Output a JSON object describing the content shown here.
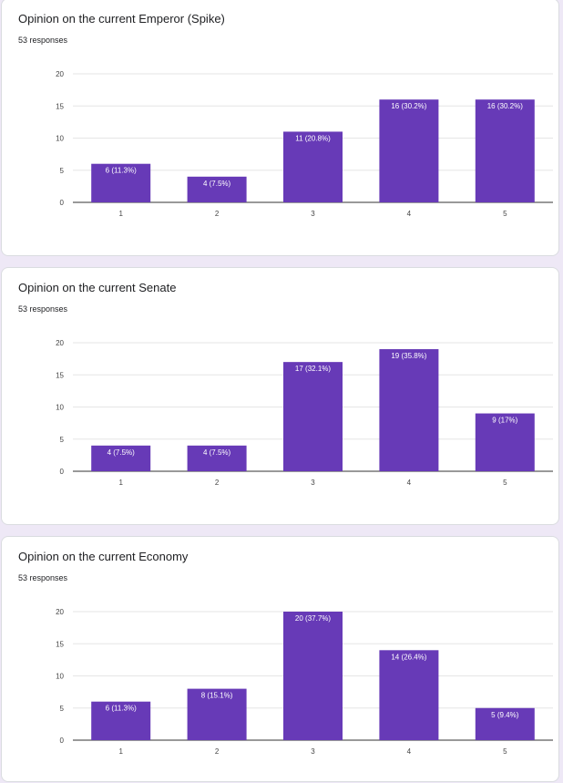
{
  "accent": "#673ab7",
  "cards": [
    {
      "title": "Opinion on the current Emperor (Spike)",
      "responses": "53 responses",
      "chart_data": {
        "type": "bar",
        "categories": [
          "1",
          "2",
          "3",
          "4",
          "5"
        ],
        "values": [
          6,
          4,
          11,
          16,
          16
        ],
        "labels": [
          "6 (11.3%)",
          "4 (7.5%)",
          "11 (20.8%)",
          "16 (30.2%)",
          "16 (30.2%)"
        ],
        "yticks": [
          "0",
          "5",
          "10",
          "15",
          "20"
        ],
        "ylim": [
          0,
          20
        ],
        "grid": true,
        "color": "#673ab7"
      }
    },
    {
      "title": "Opinion on the current Senate",
      "responses": "53 responses",
      "chart_data": {
        "type": "bar",
        "categories": [
          "1",
          "2",
          "3",
          "4",
          "5"
        ],
        "values": [
          4,
          4,
          17,
          19,
          9
        ],
        "labels": [
          "4 (7.5%)",
          "4 (7.5%)",
          "17 (32.1%)",
          "19 (35.8%)",
          "9 (17%)"
        ],
        "yticks": [
          "0",
          "5",
          "10",
          "15",
          "20"
        ],
        "ylim": [
          0,
          20
        ],
        "grid": true,
        "color": "#673ab7"
      }
    },
    {
      "title": "Opinion on the current Economy",
      "responses": "53 responses",
      "chart_data": {
        "type": "bar",
        "categories": [
          "1",
          "2",
          "3",
          "4",
          "5"
        ],
        "values": [
          6,
          8,
          20,
          14,
          5
        ],
        "labels": [
          "6 (11.3%)",
          "8 (15.1%)",
          "20 (37.7%)",
          "14 (26.4%)",
          "5 (9.4%)"
        ],
        "yticks": [
          "0",
          "5",
          "10",
          "15",
          "20"
        ],
        "ylim": [
          0,
          20
        ],
        "grid": true,
        "color": "#673ab7"
      }
    }
  ]
}
